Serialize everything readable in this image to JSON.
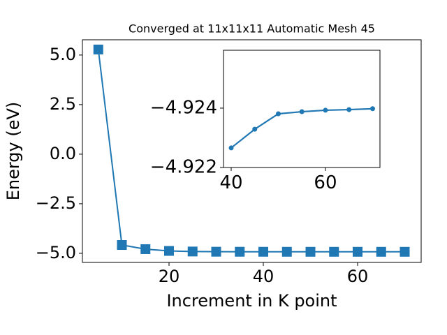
{
  "chart_data": [
    {
      "type": "line",
      "title": "Converged at 11x11x11 Automatic Mesh 45",
      "x_label": "Increment in K point",
      "y_label": "Energy (eV)",
      "marker": "square",
      "color": "#1f77b4",
      "x": [
        5,
        10,
        15,
        20,
        25,
        30,
        35,
        40,
        45,
        50,
        55,
        60,
        65,
        70
      ],
      "values": [
        5.28,
        -4.58,
        -4.79,
        -4.88,
        -4.91,
        -4.92,
        -4.922,
        -4.92266,
        -4.92329,
        -4.92381,
        -4.92388,
        -4.92393,
        -4.92395,
        -4.92398
      ],
      "xlim": [
        1.63,
        73.48
      ],
      "ylim": [
        -5.46,
        5.77
      ],
      "xticks": [
        20,
        40,
        60
      ],
      "yticks": [
        {
          "value": -5,
          "label": "−5.0"
        },
        {
          "value": -2.5,
          "label": "−2.5"
        },
        {
          "value": 0,
          "label": "0.0"
        },
        2.5,
        {
          "value": 5,
          "label": "5.0"
        }
      ]
    },
    {
      "type": "line",
      "marker": "circle",
      "color": "#1f77b4",
      "x": [
        40,
        45,
        50,
        55,
        60,
        65,
        70
      ],
      "values": [
        -4.92266,
        -4.92329,
        -4.92381,
        -4.92388,
        -4.92393,
        -4.92395,
        -4.92398
      ],
      "xlim": [
        38.37,
        71.56
      ],
      "ylim": [
        -4.922,
        -4.92595
      ],
      "xticks": [
        40,
        60
      ],
      "yticks": [
        {
          "value": -4.922,
          "label": "−4.922"
        },
        {
          "value": -4.924,
          "label": "−4.924"
        }
      ]
    }
  ]
}
